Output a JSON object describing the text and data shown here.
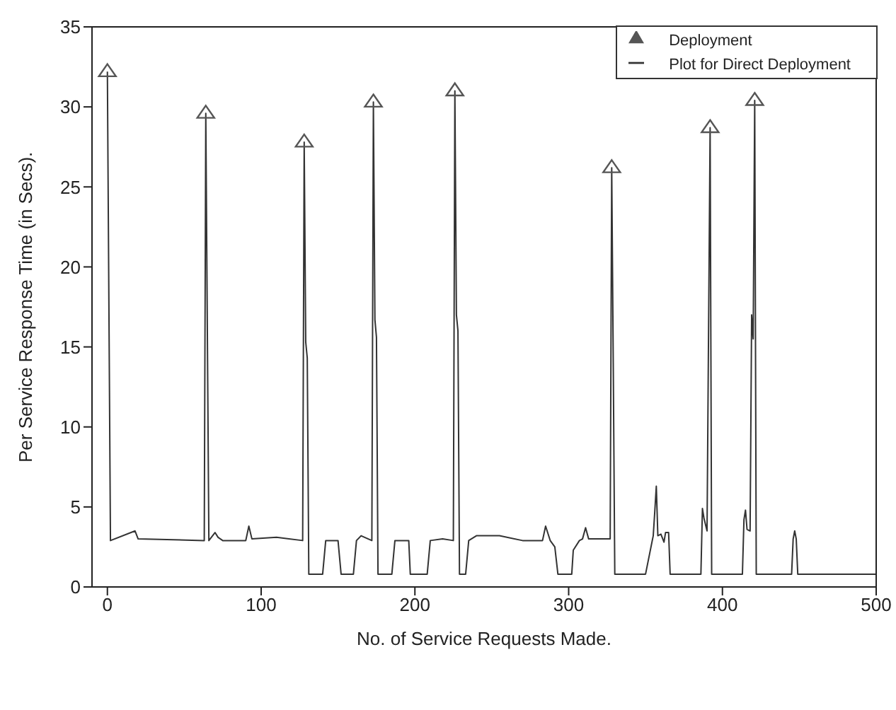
{
  "chart_data": {
    "type": "line",
    "xlabel": "No. of Service Requests Made.",
    "ylabel": "Per Service Response Time (in Secs).",
    "xlim": [
      -10,
      500
    ],
    "ylim": [
      0,
      35
    ],
    "xticks": [
      0,
      100,
      200,
      300,
      400,
      500
    ],
    "yticks": [
      0,
      5,
      10,
      15,
      20,
      25,
      30,
      35
    ],
    "legend": "top right",
    "series": [
      {
        "name": "Plot for Direct Deployment",
        "color": "#333333",
        "marker": "none",
        "line_style": "solid",
        "x": [
          0,
          1,
          2,
          18,
          20,
          63,
          64,
          65,
          66,
          70,
          72,
          75,
          90,
          92,
          94,
          110,
          127,
          128,
          129,
          130,
          131,
          140,
          142,
          150,
          152,
          160,
          162,
          165,
          172,
          173,
          174,
          175,
          176,
          185,
          187,
          196,
          197,
          208,
          210,
          218,
          225,
          226,
          227,
          228,
          229,
          233,
          235,
          240,
          255,
          270,
          283,
          285,
          288,
          291,
          293,
          302,
          303,
          307,
          309,
          311,
          313,
          320,
          327,
          328,
          329,
          330,
          350,
          355,
          356,
          357,
          358,
          360,
          362,
          363,
          365,
          366,
          386,
          387,
          388,
          390,
          391,
          392,
          393,
          413,
          414,
          415,
          416,
          418,
          419,
          420,
          421,
          422,
          445,
          446,
          447,
          448,
          449,
          500
        ],
        "values": [
          32.2,
          17.5,
          2.9,
          3.5,
          3.0,
          2.9,
          29.6,
          16.2,
          2.9,
          3.4,
          3.1,
          2.9,
          2.9,
          3.8,
          3.0,
          3.1,
          2.9,
          27.8,
          15.3,
          14.3,
          0.8,
          0.8,
          2.9,
          2.9,
          0.8,
          0.8,
          2.9,
          3.2,
          2.9,
          30.3,
          16.7,
          15.6,
          0.8,
          0.8,
          2.9,
          2.9,
          0.8,
          0.8,
          2.9,
          3.0,
          2.9,
          31.0,
          17.0,
          16.0,
          0.8,
          0.8,
          2.9,
          3.2,
          3.2,
          2.9,
          2.9,
          3.8,
          2.9,
          2.5,
          0.8,
          0.8,
          2.3,
          2.9,
          3.0,
          3.7,
          3.0,
          3.0,
          3.0,
          26.2,
          14.0,
          0.8,
          0.8,
          3.2,
          4.7,
          6.3,
          3.2,
          3.3,
          2.8,
          3.4,
          3.4,
          0.8,
          0.8,
          4.9,
          4.3,
          3.5,
          16.2,
          28.7,
          0.8,
          0.8,
          4.2,
          4.8,
          3.6,
          3.5,
          17.0,
          15.5,
          30.4,
          0.8,
          0.8,
          3.0,
          3.5,
          3.0,
          0.8,
          0.8
        ]
      },
      {
        "name": "Deployment",
        "type": "scatter",
        "color": "#555555",
        "marker": "triangle",
        "x": [
          0,
          64,
          128,
          173,
          226,
          328,
          392,
          421
        ],
        "values": [
          32.2,
          29.6,
          27.8,
          30.3,
          31.0,
          26.2,
          28.7,
          30.4
        ]
      }
    ]
  }
}
